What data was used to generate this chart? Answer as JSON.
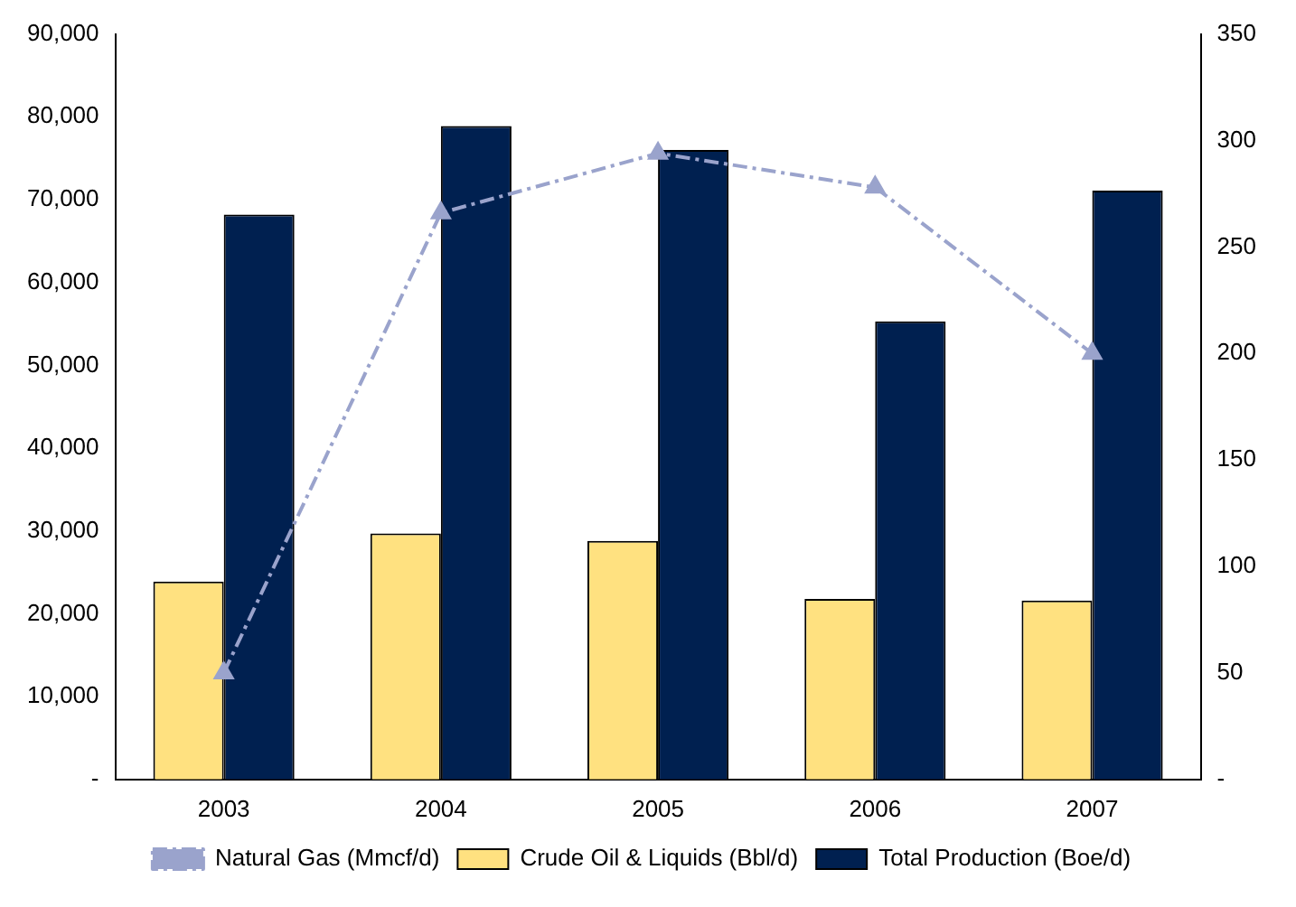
{
  "chart_data": {
    "type": "bar",
    "categories": [
      "2003",
      "2004",
      "2005",
      "2006",
      "2007"
    ],
    "series": [
      {
        "name": "Crude Oil & Liquids (Bbl/d)",
        "color": "#ffe180",
        "values": [
          23900,
          29700,
          28800,
          21800,
          21600
        ]
      },
      {
        "name": "Total Production (Boe/d)",
        "color": "#002050",
        "values": [
          68200,
          78900,
          76000,
          55300,
          71100
        ]
      },
      {
        "name": "Natural Gas (Mmcf/d)",
        "type": "line",
        "axis": "y2",
        "color": "#9aa3cc",
        "marker": "triangle",
        "line_style": "dashed",
        "values": [
          50,
          266,
          294,
          278,
          200
        ]
      }
    ],
    "ylim": [
      0,
      90000
    ],
    "yticks": [
      {
        "value": 0,
        "label": "-"
      },
      {
        "value": 10000,
        "label": "10,000"
      },
      {
        "value": 20000,
        "label": "20,000"
      },
      {
        "value": 30000,
        "label": "30,000"
      },
      {
        "value": 40000,
        "label": "40,000"
      },
      {
        "value": 50000,
        "label": "50,000"
      },
      {
        "value": 60000,
        "label": "60,000"
      },
      {
        "value": 70000,
        "label": "70,000"
      },
      {
        "value": 80000,
        "label": "80,000"
      },
      {
        "value": 90000,
        "label": "90,000"
      }
    ],
    "y2lim": [
      0,
      350
    ],
    "y2ticks": [
      {
        "value": 0,
        "label": "-"
      },
      50,
      100,
      150,
      200,
      250,
      300,
      350
    ],
    "grid": false,
    "legend": "bottom"
  }
}
